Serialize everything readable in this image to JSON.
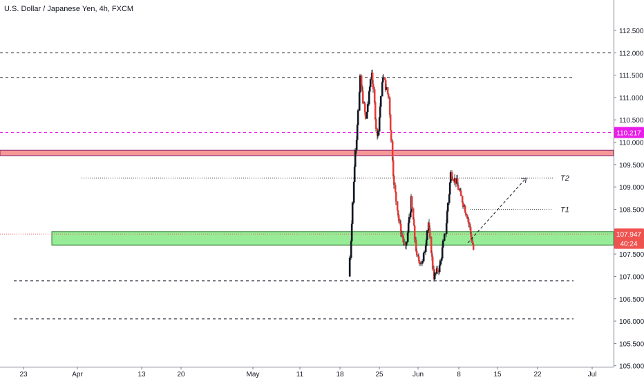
{
  "chart_data": {
    "type": "candlestick",
    "title": "U.S. Dollar / Japanese Yen, 4h, FXCM",
    "ylim": [
      104.98,
      113.18
    ],
    "y_ticks": [
      {
        "value": 112.5,
        "label": "112.500"
      },
      {
        "value": 112.0,
        "label": "112.000"
      },
      {
        "value": 111.5,
        "label": "111.500"
      },
      {
        "value": 111.0,
        "label": "111.000"
      },
      {
        "value": 110.5,
        "label": "110.500"
      },
      {
        "value": 110.0,
        "label": "110.000"
      },
      {
        "value": 109.5,
        "label": "109.500"
      },
      {
        "value": 109.0,
        "label": "109.000"
      },
      {
        "value": 108.5,
        "label": "108.500"
      },
      {
        "value": 107.5,
        "label": "107.500"
      },
      {
        "value": 107.0,
        "label": "107.000"
      },
      {
        "value": 106.5,
        "label": "106.500"
      },
      {
        "value": 106.0,
        "label": "106.000"
      },
      {
        "value": 105.5,
        "label": "105.500"
      },
      {
        "value": 105.0,
        "label": "105.000"
      }
    ],
    "x_ticks": [
      "23",
      "Apr",
      "13",
      "20",
      "May",
      "11",
      "18",
      "25",
      "Jun",
      "8",
      "15",
      "22",
      "Jul"
    ],
    "price_labels": [
      {
        "label": "110.217",
        "value": 110.217,
        "color": "#e91ee8"
      },
      {
        "label": "107.947",
        "value": 107.947,
        "color": "#ef5350"
      },
      {
        "label": "40:24",
        "value": 107.74,
        "color": "#ef5350"
      }
    ],
    "horizontal_levels": [
      112.0,
      111.44,
      106.9,
      106.05
    ],
    "dotted_levels": [
      109.2,
      108.5
    ],
    "magenta_level": 110.217,
    "resistance_zone": [
      109.7,
      109.82
    ],
    "support_zone": [
      107.7,
      108.0
    ],
    "targets": [
      {
        "label": "T2",
        "value": 109.2
      },
      {
        "label": "T1",
        "value": 108.5
      }
    ],
    "projection": {
      "from": [
        0.0,
        107.75
      ],
      "to": [
        10.3,
        109.2
      ]
    },
    "price_path": [
      [
        -21,
        107.0
      ],
      [
        -20,
        109.5
      ],
      [
        -19,
        111.4
      ],
      [
        -18,
        110.5
      ],
      [
        -17,
        111.6
      ],
      [
        -16,
        110.1
      ],
      [
        -15,
        111.5
      ],
      [
        -14,
        111.0
      ],
      [
        -13,
        109.0
      ],
      [
        -12,
        108.1
      ],
      [
        -11,
        107.6
      ],
      [
        -10,
        108.7
      ],
      [
        -9,
        107.4
      ],
      [
        -8,
        107.3
      ],
      [
        -7,
        108.2
      ],
      [
        -6,
        107.0
      ],
      [
        -5,
        107.2
      ],
      [
        -4,
        108.0
      ],
      [
        -3,
        109.3
      ],
      [
        -2,
        109.1
      ],
      [
        -1,
        108.7
      ],
      [
        0,
        108.3
      ],
      [
        1,
        107.6
      ],
      [
        2,
        107.2
      ],
      [
        3,
        107.8
      ],
      [
        4,
        107.9
      ],
      [
        5,
        107.6
      ],
      [
        6,
        107.8
      ],
      [
        7,
        107.3
      ],
      [
        8,
        106.7
      ],
      [
        9,
        107.2
      ],
      [
        10,
        106.9
      ],
      [
        11,
        106.3
      ],
      [
        12,
        106.2
      ],
      [
        13,
        107.3
      ],
      [
        14,
        107.5
      ],
      [
        15,
        107.0
      ],
      [
        16,
        106.9
      ],
      [
        17,
        107.6
      ],
      [
        18,
        107.8
      ],
      [
        19,
        107.7
      ],
      [
        20,
        107.4
      ],
      [
        21,
        107.7
      ],
      [
        22,
        107.5
      ],
      [
        23,
        107.2
      ],
      [
        24,
        108.3
      ],
      [
        25,
        109.0
      ],
      [
        26,
        109.8
      ],
      [
        27,
        109.4
      ],
      [
        28,
        108.3
      ],
      [
        29,
        107.85
      ]
    ]
  }
}
